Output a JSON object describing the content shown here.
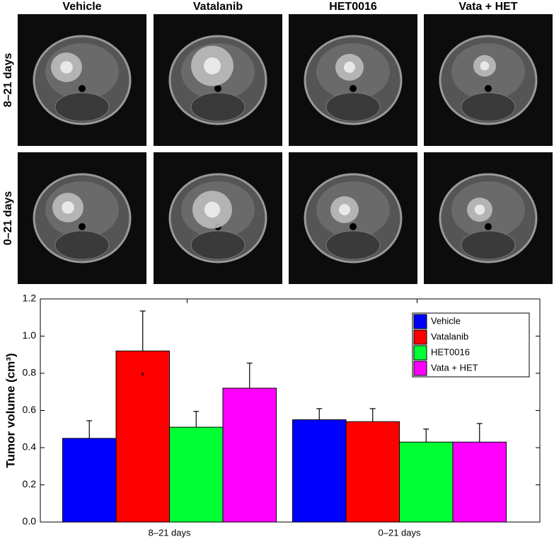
{
  "panel": {
    "column_headers": [
      "Vehicle",
      "Vatalanib",
      "HET0016",
      "Vata + HET"
    ],
    "row_labels": [
      "8–21 days",
      "0–21 days"
    ]
  },
  "chart_data": {
    "type": "bar",
    "ylabel": "Tumor volume (cm³)",
    "categories": [
      "8–21 days",
      "0–21 days"
    ],
    "series": [
      {
        "name": "Vehicle",
        "color": "#0000ff",
        "values": [
          0.45,
          0.55
        ],
        "errors": [
          0.095,
          0.06
        ]
      },
      {
        "name": "Vatalanib",
        "color": "#ff0000",
        "values": [
          0.92,
          0.54
        ],
        "errors": [
          0.215,
          0.07
        ]
      },
      {
        "name": "HET0016",
        "color": "#00ff33",
        "values": [
          0.51,
          0.43
        ],
        "errors": [
          0.085,
          0.07
        ]
      },
      {
        "name": "Vata + HET",
        "color": "#ff00ff",
        "values": [
          0.72,
          0.43
        ],
        "errors": [
          0.135,
          0.1
        ]
      }
    ],
    "annotation": "*",
    "ylim": [
      0,
      1.2
    ],
    "yticks": [
      {
        "value": 0,
        "label": "0.0"
      },
      0.2,
      0.4,
      0.6,
      0.8,
      {
        "value": 1,
        "label": "1.0"
      },
      1.2
    ],
    "legend": "upper right"
  }
}
